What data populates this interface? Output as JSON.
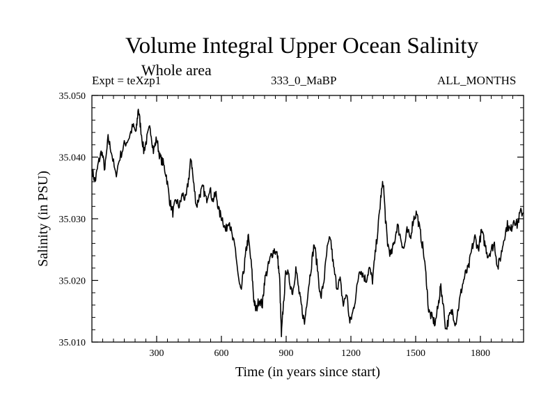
{
  "header": {
    "title": "Volume Integral Upper Ocean Salinity",
    "subtitle": "Whole area",
    "experiment": "Expt = teXzp1",
    "run_id": "333_0_MaBP",
    "months": "ALL_MONTHS"
  },
  "colors": {
    "line": "#000000",
    "frame": "#000000",
    "background": "#ffffff"
  },
  "chart_data": {
    "type": "line",
    "title": "Volume Integral Upper Ocean Salinity",
    "subtitle": "Whole area",
    "xlabel": "Time (in years since start)",
    "ylabel": "Salinity (in PSU)",
    "xlim": [
      0,
      2000
    ],
    "ylim": [
      35.01,
      35.05
    ],
    "x_ticks": [
      300,
      600,
      900,
      1200,
      1500,
      1800
    ],
    "x_tick_labels": [
      "300",
      "600",
      "900",
      "1200",
      "1500",
      "1800"
    ],
    "y_ticks": [
      35.01,
      35.02,
      35.03,
      35.04,
      35.05
    ],
    "y_tick_labels": [
      "35.010",
      "35.020",
      "35.030",
      "35.040",
      "35.050"
    ],
    "grid": false,
    "series": [
      {
        "name": "Salinity",
        "points": [
          [
            0,
            35.038
          ],
          [
            15,
            35.036
          ],
          [
            30,
            35.039
          ],
          [
            45,
            35.041
          ],
          [
            60,
            35.038
          ],
          [
            75,
            35.043
          ],
          [
            90,
            35.041
          ],
          [
            110,
            35.037
          ],
          [
            130,
            35.04
          ],
          [
            150,
            35.042
          ],
          [
            170,
            35.043
          ],
          [
            190,
            35.045
          ],
          [
            205,
            35.044
          ],
          [
            215,
            35.048
          ],
          [
            225,
            35.045
          ],
          [
            240,
            35.041
          ],
          [
            255,
            35.043
          ],
          [
            270,
            35.045
          ],
          [
            285,
            35.041
          ],
          [
            300,
            35.043
          ],
          [
            315,
            35.04
          ],
          [
            330,
            35.039
          ],
          [
            345,
            35.037
          ],
          [
            360,
            35.033
          ],
          [
            375,
            35.031
          ],
          [
            390,
            35.033
          ],
          [
            405,
            35.032
          ],
          [
            420,
            35.034
          ],
          [
            435,
            35.033
          ],
          [
            450,
            35.037
          ],
          [
            460,
            35.04
          ],
          [
            470,
            35.036
          ],
          [
            485,
            35.032
          ],
          [
            500,
            35.034
          ],
          [
            515,
            35.035
          ],
          [
            530,
            35.033
          ],
          [
            545,
            35.035
          ],
          [
            560,
            35.033
          ],
          [
            575,
            35.034
          ],
          [
            590,
            35.031
          ],
          [
            605,
            35.03
          ],
          [
            620,
            35.028
          ],
          [
            635,
            35.03
          ],
          [
            650,
            35.027
          ],
          [
            665,
            35.025
          ],
          [
            680,
            35.02
          ],
          [
            690,
            35.018
          ],
          [
            705,
            35.022
          ],
          [
            715,
            35.025
          ],
          [
            725,
            35.027
          ],
          [
            740,
            35.022
          ],
          [
            750,
            35.017
          ],
          [
            760,
            35.015
          ],
          [
            775,
            35.017
          ],
          [
            790,
            35.016
          ],
          [
            800,
            35.02
          ],
          [
            815,
            35.022
          ],
          [
            830,
            35.024
          ],
          [
            845,
            35.025
          ],
          [
            860,
            35.024
          ],
          [
            870,
            35.02
          ],
          [
            878,
            35.011
          ],
          [
            885,
            35.015
          ],
          [
            900,
            35.022
          ],
          [
            915,
            35.02
          ],
          [
            930,
            35.018
          ],
          [
            945,
            35.022
          ],
          [
            960,
            35.018
          ],
          [
            970,
            35.016
          ],
          [
            985,
            35.013
          ],
          [
            1000,
            35.018
          ],
          [
            1015,
            35.022
          ],
          [
            1030,
            35.026
          ],
          [
            1045,
            35.022
          ],
          [
            1060,
            35.017
          ],
          [
            1075,
            35.02
          ],
          [
            1090,
            35.025
          ],
          [
            1105,
            35.027
          ],
          [
            1120,
            35.022
          ],
          [
            1135,
            35.019
          ],
          [
            1150,
            35.02
          ],
          [
            1165,
            35.016
          ],
          [
            1180,
            35.018
          ],
          [
            1195,
            35.013
          ],
          [
            1210,
            35.015
          ],
          [
            1225,
            35.018
          ],
          [
            1240,
            35.022
          ],
          [
            1255,
            35.021
          ],
          [
            1270,
            35.02
          ],
          [
            1285,
            35.022
          ],
          [
            1300,
            35.02
          ],
          [
            1315,
            35.025
          ],
          [
            1330,
            35.03
          ],
          [
            1340,
            35.034
          ],
          [
            1350,
            35.036
          ],
          [
            1360,
            35.03
          ],
          [
            1370,
            35.026
          ],
          [
            1385,
            35.024
          ],
          [
            1400,
            35.026
          ],
          [
            1415,
            35.029
          ],
          [
            1430,
            35.027
          ],
          [
            1445,
            35.025
          ],
          [
            1460,
            35.028
          ],
          [
            1475,
            35.027
          ],
          [
            1490,
            35.03
          ],
          [
            1505,
            35.031
          ],
          [
            1520,
            35.028
          ],
          [
            1535,
            35.025
          ],
          [
            1550,
            35.02
          ],
          [
            1560,
            35.015
          ],
          [
            1575,
            35.014
          ],
          [
            1590,
            35.013
          ],
          [
            1605,
            35.016
          ],
          [
            1615,
            35.019
          ],
          [
            1625,
            35.017
          ],
          [
            1640,
            35.012
          ],
          [
            1655,
            35.014
          ],
          [
            1670,
            35.015
          ],
          [
            1685,
            35.013
          ],
          [
            1700,
            35.016
          ],
          [
            1715,
            35.019
          ],
          [
            1730,
            35.021
          ],
          [
            1745,
            35.022
          ],
          [
            1760,
            35.025
          ],
          [
            1775,
            35.027
          ],
          [
            1790,
            35.025
          ],
          [
            1805,
            35.028
          ],
          [
            1820,
            35.026
          ],
          [
            1835,
            35.024
          ],
          [
            1850,
            35.025
          ],
          [
            1865,
            35.026
          ],
          [
            1880,
            35.022
          ],
          [
            1895,
            35.024
          ],
          [
            1910,
            35.027
          ],
          [
            1925,
            35.029
          ],
          [
            1940,
            35.028
          ],
          [
            1955,
            35.03
          ],
          [
            1970,
            35.029
          ],
          [
            1985,
            35.031
          ],
          [
            2000,
            35.031
          ]
        ]
      }
    ]
  }
}
